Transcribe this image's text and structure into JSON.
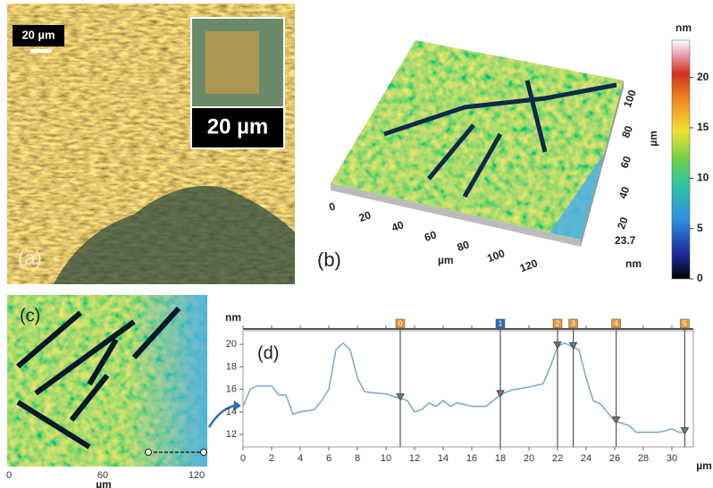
{
  "panel_a": {
    "label": "(a)",
    "scale_bar": "20 µm",
    "inset_scale": "20 µm"
  },
  "panel_b": {
    "label": "(b)",
    "x_label": "µm",
    "y_label": "µm",
    "z_max": "23.7",
    "z_unit": "nm",
    "xticks": [
      0,
      20,
      40,
      60,
      80,
      100,
      120
    ],
    "yticks": [
      20,
      40,
      60,
      80,
      100
    ],
    "colorbar": {
      "label": "nm",
      "ticks": [
        0,
        5,
        10,
        15,
        20
      ],
      "lim": [
        0,
        23.7
      ]
    }
  },
  "panel_c": {
    "label": "(c)",
    "x_label": "µm",
    "xticks": [
      0,
      60,
      120
    ],
    "xlim": [
      0,
      120
    ]
  },
  "chart_data": {
    "type": "line",
    "label": "(d)",
    "x_label": "µm",
    "y_label": "nm",
    "x": [
      0,
      0.5,
      1,
      2,
      2.5,
      3,
      3.5,
      4,
      5,
      5.5,
      6,
      6.5,
      7,
      7.5,
      8,
      8.5,
      9,
      10,
      11,
      11.5,
      12,
      12.5,
      13,
      13.5,
      14,
      14.5,
      15,
      16,
      17,
      17.5,
      18,
      18.5,
      19,
      20,
      21,
      21.5,
      22,
      22.5,
      23,
      23.5,
      24,
      24.5,
      25,
      26,
      26.5,
      27,
      27.5,
      28,
      29,
      29.5,
      30,
      30.5,
      31
    ],
    "series": [
      {
        "name": "profile",
        "color": "#7aa7c7",
        "values": [
          14.5,
          16,
          16.3,
          16.3,
          15.5,
          15.5,
          13.8,
          14,
          14.2,
          15,
          16,
          19.5,
          20.1,
          19.5,
          17,
          15.8,
          15.7,
          15.6,
          15.2,
          15,
          14,
          14.2,
          14.8,
          14.5,
          15,
          14.5,
          14.8,
          14.5,
          14.5,
          15,
          15.5,
          15.8,
          16,
          16.2,
          16.5,
          18,
          19.8,
          20.1,
          19.8,
          19.5,
          17,
          15,
          14.7,
          13.2,
          13,
          12.8,
          12.2,
          12.2,
          12.2,
          12.3,
          12.5,
          12.2,
          12.2
        ]
      }
    ],
    "cursors": {
      "labels": [
        "0",
        "1",
        "2",
        "3",
        "4",
        "5"
      ],
      "x": [
        11,
        18,
        22,
        23.1,
        26.1,
        30.9
      ],
      "colors": [
        "#e09a3a",
        "#2f6db5",
        "#e09a3a",
        "#e09a3a",
        "#e09a3a",
        "#e09a3a"
      ]
    },
    "xlim": [
      0,
      31.5
    ],
    "ylim": [
      10.9,
      21.2
    ],
    "xticks": [
      0,
      2,
      4,
      6,
      8,
      10,
      12,
      14,
      16,
      18,
      20,
      22,
      24,
      26,
      28,
      30
    ],
    "yticks": [
      12,
      14,
      16,
      18,
      20
    ]
  }
}
